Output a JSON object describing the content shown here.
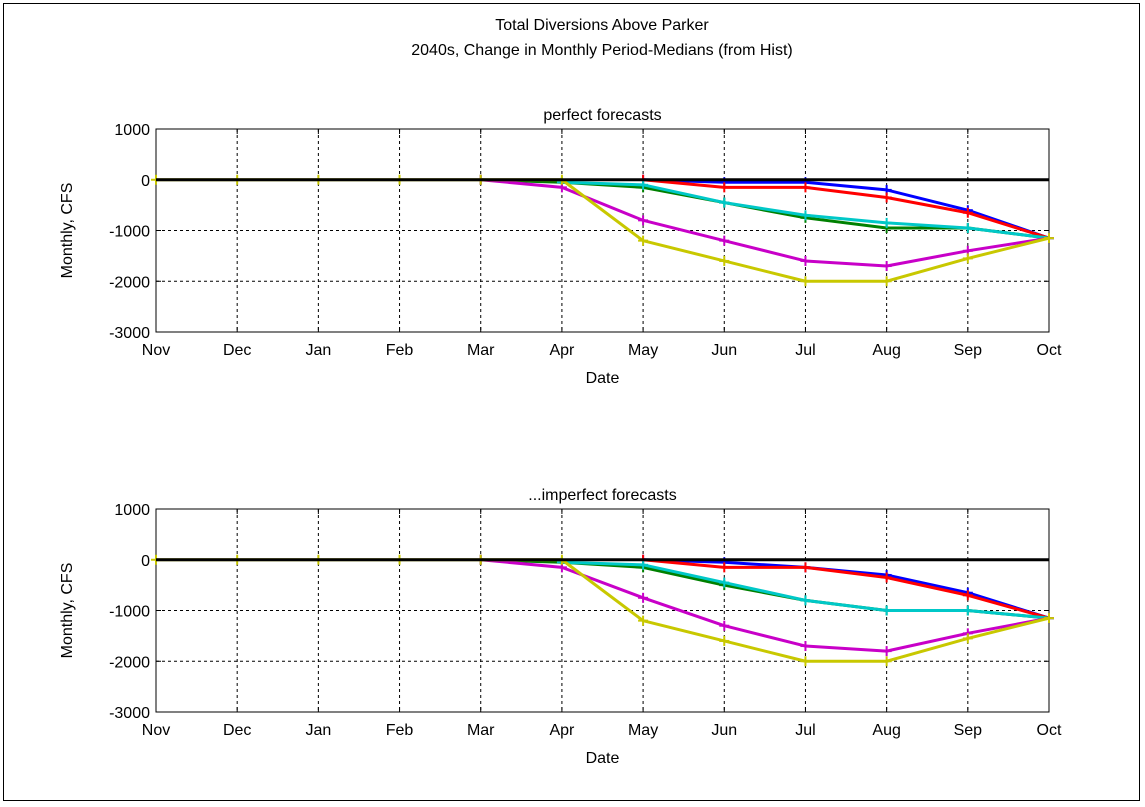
{
  "figure": {
    "title_lines": [
      "Total Diversions Above Parker",
      "2040s, Change in Monthly Period-Medians (from Hist)"
    ]
  },
  "chart_data": [
    {
      "type": "line",
      "title": "perfect forecasts",
      "xlabel": "Date",
      "ylabel": "Monthly, CFS",
      "categories": [
        "Nov",
        "Dec",
        "Jan",
        "Feb",
        "Mar",
        "Apr",
        "May",
        "Jun",
        "Jul",
        "Aug",
        "Sep",
        "Oct"
      ],
      "yticks": [
        1000,
        0,
        -1000,
        -2000,
        -3000
      ],
      "ylim": [
        -3000,
        1000
      ],
      "grid": true,
      "zero_line": true,
      "series": [
        {
          "color": "#0000ff",
          "values": [
            null,
            null,
            null,
            null,
            null,
            null,
            0,
            -50,
            -50,
            -200,
            -600,
            -1150
          ]
        },
        {
          "color": "#ff0000",
          "values": [
            null,
            null,
            null,
            null,
            null,
            null,
            0,
            -150,
            -150,
            -350,
            -650,
            -1150
          ]
        },
        {
          "color": "#008000",
          "values": [
            null,
            null,
            null,
            null,
            0,
            -50,
            -150,
            -450,
            -750,
            -950,
            -950,
            -1150
          ]
        },
        {
          "color": "#00c8c8",
          "values": [
            null,
            null,
            null,
            null,
            null,
            -50,
            -100,
            -450,
            -700,
            -850,
            -950,
            -1150
          ]
        },
        {
          "color": "#c800c8",
          "values": [
            null,
            null,
            null,
            null,
            0,
            -150,
            -800,
            -1200,
            -1600,
            -1700,
            -1400,
            -1150
          ]
        },
        {
          "color": "#c8c800",
          "values": [
            0,
            0,
            0,
            0,
            0,
            0,
            -1200,
            -1600,
            -2000,
            -2000,
            -1550,
            -1150
          ]
        }
      ]
    },
    {
      "type": "line",
      "title": "...imperfect forecasts",
      "xlabel": "Date",
      "ylabel": "Monthly, CFS",
      "categories": [
        "Nov",
        "Dec",
        "Jan",
        "Feb",
        "Mar",
        "Apr",
        "May",
        "Jun",
        "Jul",
        "Aug",
        "Sep",
        "Oct"
      ],
      "yticks": [
        1000,
        0,
        -1000,
        -2000,
        -3000
      ],
      "ylim": [
        -3000,
        1000
      ],
      "grid": true,
      "zero_line": true,
      "series": [
        {
          "color": "#0000ff",
          "values": [
            null,
            null,
            null,
            null,
            null,
            null,
            0,
            -50,
            -150,
            -300,
            -650,
            -1150
          ]
        },
        {
          "color": "#ff0000",
          "values": [
            null,
            null,
            null,
            null,
            null,
            null,
            0,
            -150,
            -150,
            -350,
            -700,
            -1150
          ]
        },
        {
          "color": "#008000",
          "values": [
            null,
            null,
            null,
            null,
            0,
            -50,
            -150,
            -500,
            -800,
            -1000,
            -1000,
            -1150
          ]
        },
        {
          "color": "#00c8c8",
          "values": [
            null,
            null,
            null,
            null,
            null,
            -50,
            -100,
            -450,
            -800,
            -1000,
            -1000,
            -1150
          ]
        },
        {
          "color": "#c800c8",
          "values": [
            null,
            null,
            null,
            null,
            0,
            -150,
            -750,
            -1300,
            -1700,
            -1800,
            -1450,
            -1150
          ]
        },
        {
          "color": "#c8c800",
          "values": [
            0,
            0,
            0,
            0,
            0,
            0,
            -1200,
            -1600,
            -2000,
            -2000,
            -1550,
            -1150
          ]
        }
      ]
    }
  ]
}
